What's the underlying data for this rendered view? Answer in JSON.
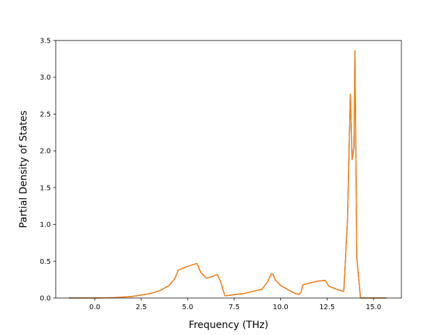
{
  "chart_data": {
    "type": "line",
    "title": "",
    "xlabel": "Frequency (THz)",
    "ylabel": "Partial Density of States",
    "xlim": [
      -2.1,
      16.5
    ],
    "ylim": [
      0,
      3.5
    ],
    "xticks": [
      0.0,
      2.5,
      5.0,
      7.5,
      10.0,
      12.5,
      15.0
    ],
    "xtick_labels": [
      "0.0",
      "2.5",
      "5.0",
      "7.5",
      "10.0",
      "12.5",
      "15.0"
    ],
    "yticks": [
      0.0,
      0.5,
      1.0,
      1.5,
      2.0,
      2.5,
      3.0,
      3.5
    ],
    "ytick_labels": [
      "0.0",
      "0.5",
      "1.0",
      "1.5",
      "2.0",
      "2.5",
      "3.0",
      "3.5"
    ],
    "grid": false,
    "legend": "none",
    "series": [
      {
        "color": "#1f77b4",
        "x": [
          -1.4,
          0.0,
          1.0,
          2.0,
          3.0,
          3.5,
          4.0,
          4.3,
          4.5,
          4.6,
          5.0,
          5.5,
          5.7,
          6.0,
          6.3,
          6.6,
          6.8,
          7.0,
          8.0,
          9.0,
          9.3,
          9.5,
          9.6,
          9.7,
          10.0,
          10.5,
          10.8,
          11.0,
          11.1,
          11.2,
          12.0,
          12.4,
          12.6,
          13.0,
          13.4,
          13.6,
          13.75,
          13.85,
          13.95,
          14.0,
          14.1,
          14.3,
          15.7
        ],
        "y": [
          0.0,
          0.0,
          0.005,
          0.02,
          0.06,
          0.1,
          0.17,
          0.26,
          0.38,
          0.39,
          0.43,
          0.47,
          0.35,
          0.27,
          0.29,
          0.32,
          0.2,
          0.03,
          0.06,
          0.12,
          0.22,
          0.33,
          0.32,
          0.25,
          0.17,
          0.1,
          0.06,
          0.05,
          0.08,
          0.18,
          0.23,
          0.24,
          0.16,
          0.12,
          0.09,
          1.07,
          2.77,
          1.88,
          2.05,
          3.36,
          0.55,
          0.0,
          0.0
        ]
      },
      {
        "color": "#ff7f0e",
        "x": [
          -1.4,
          0.0,
          1.0,
          2.0,
          3.0,
          3.5,
          4.0,
          4.3,
          4.5,
          4.6,
          5.0,
          5.5,
          5.7,
          6.0,
          6.3,
          6.6,
          6.8,
          7.0,
          8.0,
          9.0,
          9.3,
          9.5,
          9.6,
          9.7,
          10.0,
          10.5,
          10.8,
          11.0,
          11.1,
          11.2,
          12.0,
          12.4,
          12.6,
          13.0,
          13.4,
          13.6,
          13.75,
          13.85,
          13.95,
          14.0,
          14.1,
          14.3,
          15.7
        ],
        "y": [
          0.0,
          0.0,
          0.005,
          0.02,
          0.06,
          0.1,
          0.17,
          0.26,
          0.38,
          0.39,
          0.43,
          0.47,
          0.35,
          0.27,
          0.29,
          0.32,
          0.2,
          0.03,
          0.06,
          0.12,
          0.22,
          0.33,
          0.32,
          0.25,
          0.17,
          0.1,
          0.06,
          0.05,
          0.08,
          0.18,
          0.23,
          0.24,
          0.16,
          0.12,
          0.09,
          1.07,
          2.77,
          1.88,
          2.05,
          3.36,
          0.55,
          0.0,
          0.0
        ]
      }
    ]
  }
}
